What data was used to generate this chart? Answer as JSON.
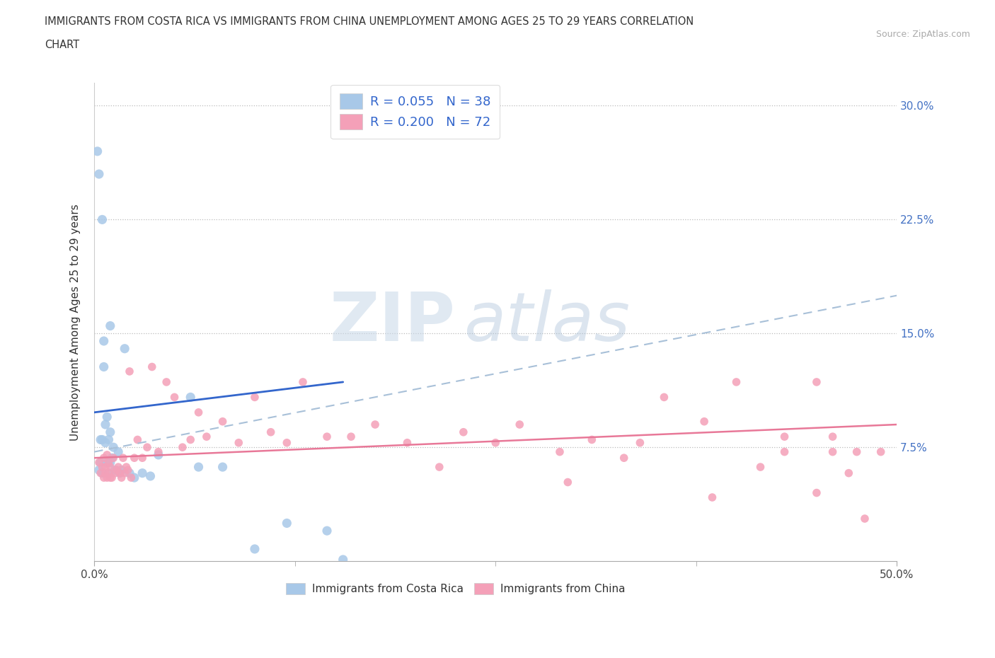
{
  "title_line1": "IMMIGRANTS FROM COSTA RICA VS IMMIGRANTS FROM CHINA UNEMPLOYMENT AMONG AGES 25 TO 29 YEARS CORRELATION",
  "title_line2": "CHART",
  "source_text": "Source: ZipAtlas.com",
  "ylabel": "Unemployment Among Ages 25 to 29 years",
  "xlim": [
    0.0,
    0.5
  ],
  "ylim": [
    0.0,
    0.315
  ],
  "legend_r1": "R = 0.055   N = 38",
  "legend_r2": "R = 0.200   N = 72",
  "legend_label1": "Immigrants from Costa Rica",
  "legend_label2": "Immigrants from China",
  "scatter_color1": "#a8c8e8",
  "scatter_color2": "#f4a0b8",
  "trendline_color1": "#3366cc",
  "trendline_color2": "#e87898",
  "trendline_dashed_color": "#a8c0d8",
  "watermark_zip": "ZIP",
  "watermark_atlas": "atlas",
  "costa_rica_x": [
    0.002,
    0.003,
    0.003,
    0.004,
    0.004,
    0.005,
    0.005,
    0.005,
    0.006,
    0.006,
    0.007,
    0.007,
    0.008,
    0.008,
    0.009,
    0.009,
    0.01,
    0.01,
    0.01,
    0.011,
    0.012,
    0.013,
    0.015,
    0.016,
    0.017,
    0.019,
    0.022,
    0.025,
    0.03,
    0.035,
    0.04,
    0.06,
    0.065,
    0.08,
    0.1,
    0.12,
    0.145,
    0.155
  ],
  "costa_rica_y": [
    0.27,
    0.255,
    0.06,
    0.08,
    0.065,
    0.225,
    0.08,
    0.058,
    0.145,
    0.128,
    0.09,
    0.078,
    0.065,
    0.095,
    0.08,
    0.058,
    0.155,
    0.085,
    0.065,
    0.068,
    0.075,
    0.06,
    0.072,
    0.058,
    0.06,
    0.14,
    0.058,
    0.055,
    0.058,
    0.056,
    0.07,
    0.108,
    0.062,
    0.062,
    0.008,
    0.025,
    0.02,
    0.001
  ],
  "china_x": [
    0.003,
    0.004,
    0.005,
    0.006,
    0.006,
    0.007,
    0.007,
    0.008,
    0.008,
    0.009,
    0.009,
    0.01,
    0.01,
    0.011,
    0.012,
    0.013,
    0.014,
    0.015,
    0.016,
    0.017,
    0.018,
    0.019,
    0.02,
    0.021,
    0.022,
    0.023,
    0.025,
    0.027,
    0.03,
    0.033,
    0.036,
    0.04,
    0.045,
    0.05,
    0.055,
    0.06,
    0.065,
    0.07,
    0.08,
    0.09,
    0.1,
    0.11,
    0.12,
    0.13,
    0.145,
    0.16,
    0.175,
    0.195,
    0.215,
    0.23,
    0.25,
    0.265,
    0.29,
    0.31,
    0.33,
    0.355,
    0.38,
    0.4,
    0.415,
    0.43,
    0.45,
    0.46,
    0.47,
    0.48,
    0.49,
    0.295,
    0.34,
    0.385,
    0.43,
    0.45,
    0.46,
    0.475
  ],
  "china_y": [
    0.065,
    0.058,
    0.062,
    0.068,
    0.055,
    0.062,
    0.058,
    0.07,
    0.055,
    0.065,
    0.058,
    0.062,
    0.055,
    0.055,
    0.068,
    0.058,
    0.06,
    0.062,
    0.058,
    0.055,
    0.068,
    0.058,
    0.062,
    0.06,
    0.125,
    0.055,
    0.068,
    0.08,
    0.068,
    0.075,
    0.128,
    0.072,
    0.118,
    0.108,
    0.075,
    0.08,
    0.098,
    0.082,
    0.092,
    0.078,
    0.108,
    0.085,
    0.078,
    0.118,
    0.082,
    0.082,
    0.09,
    0.078,
    0.062,
    0.085,
    0.078,
    0.09,
    0.072,
    0.08,
    0.068,
    0.108,
    0.092,
    0.118,
    0.062,
    0.072,
    0.045,
    0.082,
    0.058,
    0.028,
    0.072,
    0.052,
    0.078,
    0.042,
    0.082,
    0.118,
    0.072,
    0.072
  ],
  "blue_trend_x0": 0.0,
  "blue_trend_y0": 0.098,
  "blue_trend_x1": 0.155,
  "blue_trend_y1": 0.118,
  "pink_trend_x0": 0.0,
  "pink_trend_y0": 0.068,
  "pink_trend_x1": 0.5,
  "pink_trend_y1": 0.09,
  "dashed_trend_x0": 0.0,
  "dashed_trend_y0": 0.072,
  "dashed_trend_x1": 0.5,
  "dashed_trend_y1": 0.175
}
